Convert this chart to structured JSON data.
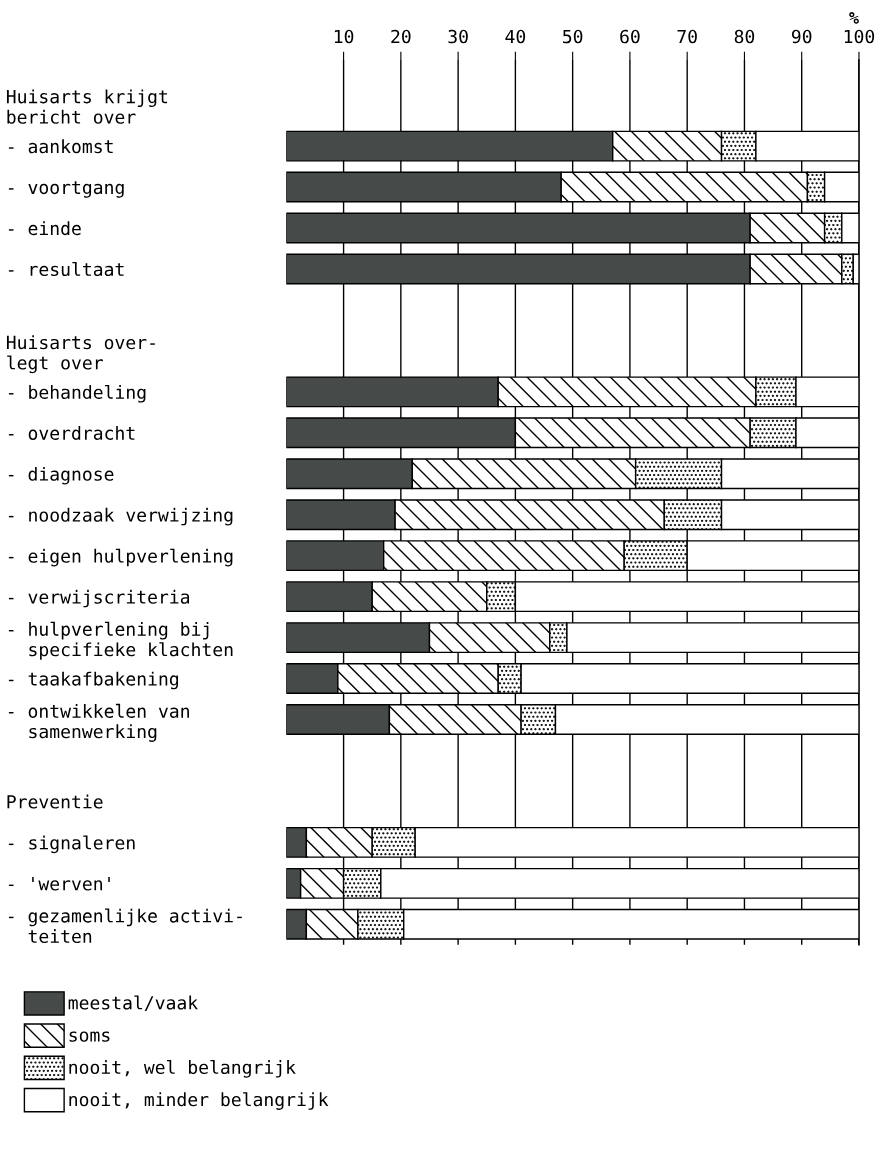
{
  "chart_data": {
    "type": "bar",
    "orientation": "horizontal",
    "stacked": true,
    "categories": [
      "Huisarts krijgt\nbericht over",
      "- aankomst",
      "- voortgang",
      "- einde",
      "- resultaat",
      null,
      "Huisarts over-\nlegt over",
      "- behandeling",
      "- overdracht",
      "- diagnose",
      "- noodzaak verwijzing",
      "- eigen hulpverlening",
      "- verwijscriteria",
      "- hulpverlening bij\n  specifieke klachten",
      "- taakafbakening",
      "- ontwikkelen van\n  samenwerking",
      null,
      "Preventie",
      "- signaleren",
      "- 'werven'",
      "- gezamenlijke activi-\n  teiten"
    ],
    "series": [
      {
        "name": "meestal/vaak",
        "color": "#464a48",
        "values": [
          null,
          57,
          48,
          81,
          81,
          null,
          null,
          37,
          40,
          22,
          19,
          17,
          15,
          25,
          9,
          18,
          null,
          null,
          3.5,
          2.5,
          3.5
        ]
      },
      {
        "name": "soms",
        "color": "#ffffff",
        "values": [
          null,
          19,
          43,
          13,
          16,
          null,
          null,
          45,
          41,
          39,
          47,
          42,
          20,
          21,
          28,
          23,
          null,
          null,
          11.5,
          7.5,
          9
        ]
      },
      {
        "name": "nooit, wel belangrijk",
        "color": "#ffffff",
        "values": [
          null,
          6,
          3,
          3,
          2,
          null,
          null,
          7,
          8,
          15,
          10,
          11,
          5,
          3,
          4,
          6,
          null,
          null,
          7.5,
          6.5,
          8
        ]
      },
      {
        "name": "nooit, minder belangrijk",
        "color": "#ffffff",
        "values": [
          null,
          18,
          6,
          3,
          1,
          null,
          null,
          11,
          11,
          24,
          24,
          30,
          60,
          51,
          59,
          53,
          null,
          null,
          77.5,
          83.5,
          79.5
        ]
      }
    ],
    "xlabel": "%",
    "xlim": [
      0,
      100
    ],
    "xticks": [
      10,
      20,
      30,
      40,
      50,
      60,
      70,
      80,
      90,
      100
    ],
    "grid": "x",
    "legend": "bottom left"
  }
}
